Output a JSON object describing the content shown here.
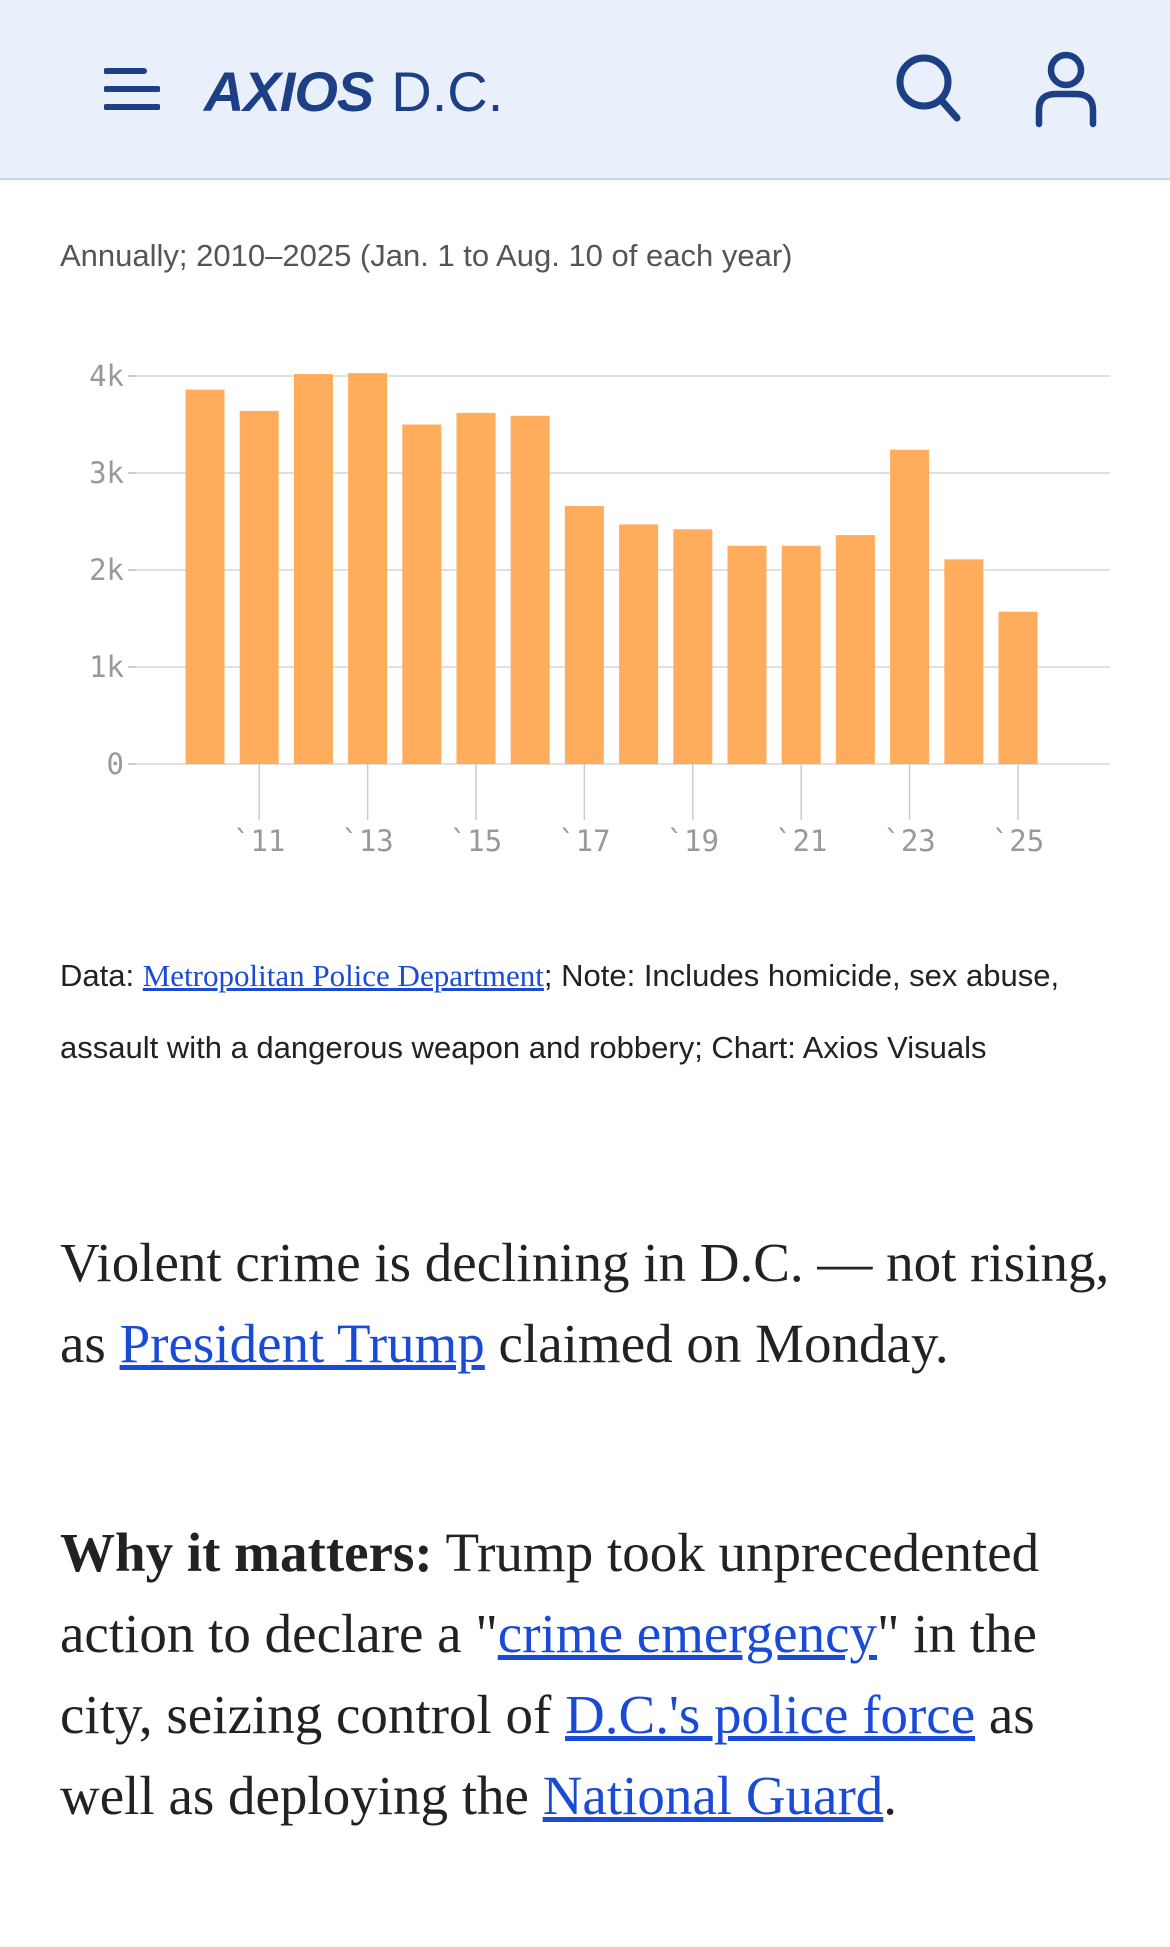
{
  "header": {
    "logo_main": "AXIOS",
    "logo_sub": "D.C.",
    "menu_icon": "hamburger-menu-icon",
    "search_icon": "search-icon",
    "user_icon": "user-account-icon"
  },
  "colors": {
    "bar": "#ffad5c",
    "header_bg": "#e9f0fb",
    "link": "#1a4bd6",
    "brand": "#1d3f85"
  },
  "chart_subtitle": "Annually; 2010–2025 (Jan. 1 to Aug. 10 of each year)",
  "chart_data": {
    "type": "bar",
    "categories": [
      "2010",
      "2011",
      "2012",
      "2013",
      "2014",
      "2015",
      "2016",
      "2017",
      "2018",
      "2019",
      "2020",
      "2021",
      "2022",
      "2023",
      "2024",
      "2025"
    ],
    "values": [
      3860,
      3640,
      4020,
      4030,
      3500,
      3620,
      3590,
      2660,
      2470,
      2420,
      2250,
      2250,
      2360,
      3240,
      2110,
      1570
    ],
    "x_tick_labels": [
      {
        "category": "2011",
        "label": "`11"
      },
      {
        "category": "2013",
        "label": "`13"
      },
      {
        "category": "2015",
        "label": "`15"
      },
      {
        "category": "2017",
        "label": "`17"
      },
      {
        "category": "2019",
        "label": "`19"
      },
      {
        "category": "2021",
        "label": "`21"
      },
      {
        "category": "2023",
        "label": "`23"
      },
      {
        "category": "2025",
        "label": "`25"
      }
    ],
    "y_ticks": [
      {
        "value": 0,
        "label": "0"
      },
      {
        "value": 1000,
        "label": "1k"
      },
      {
        "value": 2000,
        "label": "2k"
      },
      {
        "value": 3000,
        "label": "3k"
      },
      {
        "value": 4000,
        "label": "4k"
      }
    ],
    "ylim": [
      0,
      4000
    ],
    "grid": true,
    "xlabel": "",
    "ylabel": ""
  },
  "source": {
    "prefix": "Data: ",
    "link_text": "Metropolitan Police Department",
    "suffix": "; Note: Includes homicide, sex abuse, assault with a dangerous weapon and robbery; Chart: Axios Visuals"
  },
  "article": {
    "p1_text_a": "Violent crime is declining in D.C. — not rising, as ",
    "p1_link": "President Trump",
    "p1_text_b": " claimed on Monday.",
    "p2_bold": "Why it matters:",
    "p2_text_a": " Trump took unprecedented action to declare a \"",
    "p2_link1": "crime emergency",
    "p2_text_b": "\" in the city, seizing control of ",
    "p2_link2": "D.C.'s police force",
    "p2_text_c": " as well as deploying the ",
    "p2_link3": "National Guard",
    "p2_text_d": "."
  }
}
